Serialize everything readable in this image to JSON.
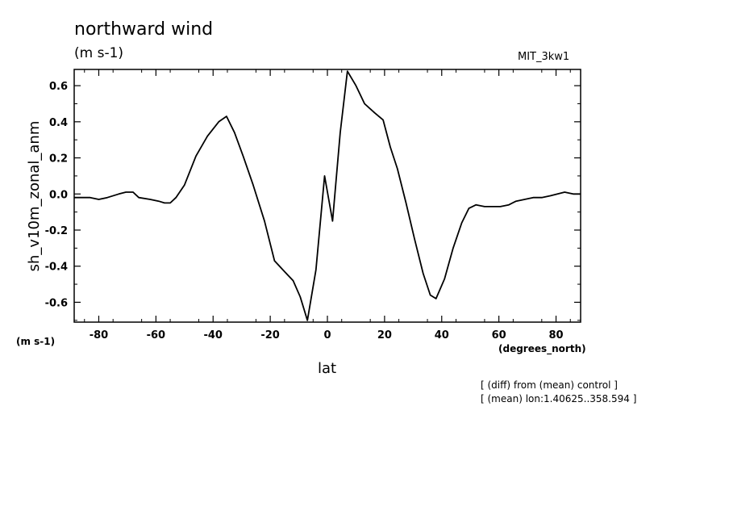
{
  "chart_data": {
    "type": "line",
    "title": "northward wind",
    "units": "(m s-1)",
    "model": "MIT_3kw1",
    "ylabel": "sh_v10m_zonal_anm",
    "xlabel": "lat",
    "y_units": "(m s-1)",
    "x_units": "(degrees_north)",
    "xlim": [
      -88.6,
      88.6
    ],
    "ylim": [
      -0.71,
      0.69
    ],
    "x_ticks": [
      -80,
      -60,
      -40,
      -20,
      0,
      20,
      40,
      60,
      80
    ],
    "y_ticks": [
      -0.6,
      -0.4,
      -0.2,
      0.0,
      0.2,
      0.4,
      0.6
    ],
    "x_tick_labels": [
      "-80",
      "-60",
      "-40",
      "-20",
      "0",
      "20",
      "40",
      "60",
      "80"
    ],
    "y_tick_labels": [
      "-0.6",
      "-0.4",
      "-0.2",
      "0.0",
      "0.2",
      "0.4",
      "0.6"
    ],
    "grid": false,
    "series": [
      {
        "color": "#000000",
        "x": [
          -88.6,
          -83.0,
          -80.0,
          -77.0,
          -73.0,
          -70.5,
          -68.0,
          -66.0,
          -62.0,
          -59.0,
          -57.0,
          -55.0,
          -53.0,
          -50.0,
          -46.0,
          -42.0,
          -38.0,
          -35.3,
          -32.5,
          -29.5,
          -26.0,
          -22.0,
          -18.5,
          -15.0,
          -12.0,
          -9.5,
          -7.0,
          -4.0,
          -1.0,
          1.8,
          4.5,
          7.0,
          10.0,
          13.0,
          16.5,
          19.5,
          22.0,
          24.5,
          27.5,
          30.5,
          33.5,
          36.0,
          38.0,
          41.0,
          44.0,
          47.0,
          49.5,
          52.0,
          55.0,
          57.5,
          60.5,
          63.5,
          66.0,
          69.0,
          72.0,
          75.0,
          78.0,
          80.5,
          83.0,
          86.0,
          88.6
        ],
        "y": [
          -0.02,
          -0.02,
          -0.03,
          -0.02,
          0.0,
          0.01,
          0.01,
          -0.02,
          -0.03,
          -0.04,
          -0.05,
          -0.05,
          -0.02,
          0.05,
          0.21,
          0.32,
          0.4,
          0.43,
          0.34,
          0.21,
          0.05,
          -0.15,
          -0.37,
          -0.43,
          -0.48,
          -0.57,
          -0.7,
          -0.42,
          0.1,
          -0.15,
          0.34,
          0.68,
          0.6,
          0.5,
          0.45,
          0.41,
          0.26,
          0.14,
          -0.05,
          -0.25,
          -0.44,
          -0.56,
          -0.58,
          -0.47,
          -0.3,
          -0.16,
          -0.08,
          -0.06,
          -0.07,
          -0.07,
          -0.07,
          -0.06,
          -0.04,
          -0.03,
          -0.02,
          -0.02,
          -0.01,
          0.0,
          0.01,
          0.0,
          0.0
        ]
      }
    ]
  },
  "notes": [
    "[ (diff) from (mean) control ]",
    "[ (mean) lon:1.40625..358.594 ]"
  ]
}
